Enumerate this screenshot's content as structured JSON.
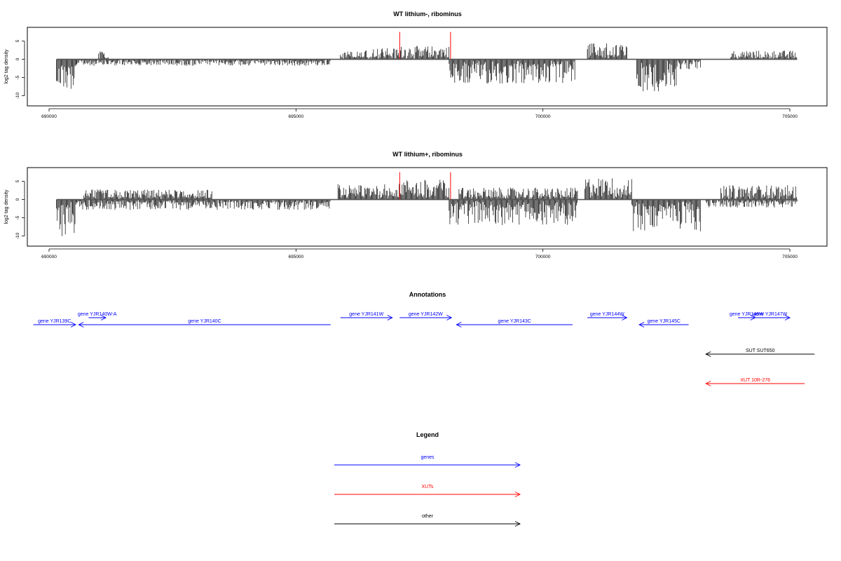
{
  "chart_data": [
    {
      "type": "bar",
      "title": "WT lithium-, ribominus",
      "ylabel": "log2 tag density",
      "xlim": [
        689800,
        705500
      ],
      "ylim": [
        -12,
        8
      ],
      "x_ticks": [
        690000,
        695000,
        700000,
        705000
      ],
      "x_tick_labels": [
        "690000",
        "695000",
        "700000",
        "705000"
      ],
      "y_ticks": [
        -10,
        -5,
        0,
        5
      ],
      "y_tick_labels": [
        "-10",
        "-5",
        "0",
        "5"
      ],
      "grid": false,
      "series": [
        {
          "color": "#000000",
          "segments": [
            {
              "start": 690150,
              "end": 690550,
              "strand": "-",
              "level": 7.5
            },
            {
              "start": 690550,
              "end": 695700,
              "strand": "-",
              "level": 1.6
            },
            {
              "start": 691000,
              "end": 691200,
              "strand": "+",
              "level": 2.0
            },
            {
              "start": 695900,
              "end": 697100,
              "strand": "+",
              "level": 2.8
            },
            {
              "start": 697100,
              "end": 698100,
              "strand": "+",
              "level": 3.3
            },
            {
              "start": 698100,
              "end": 700650,
              "strand": "-",
              "level": 6.2
            },
            {
              "start": 700900,
              "end": 701700,
              "strand": "+",
              "level": 4.0
            },
            {
              "start": 701900,
              "end": 702700,
              "strand": "-",
              "level": 8.0
            },
            {
              "start": 702700,
              "end": 703200,
              "strand": "-",
              "level": 2.5
            },
            {
              "start": 703800,
              "end": 705150,
              "strand": "+",
              "level": 2.2
            }
          ]
        },
        {
          "color": "#ff0000",
          "lines": [
            {
              "x": 697100,
              "y": 7.5
            },
            {
              "x": 698130,
              "y": 7.5
            }
          ]
        }
      ]
    },
    {
      "type": "bar",
      "title": "WT lithium+, ribominus",
      "ylabel": "log2 tag density",
      "xlim": [
        689800,
        705500
      ],
      "ylim": [
        -12,
        8
      ],
      "x_ticks": [
        690000,
        695000,
        700000,
        705000
      ],
      "x_tick_labels": [
        "690000",
        "695000",
        "700000",
        "705000"
      ],
      "y_ticks": [
        -10,
        -5,
        0,
        5
      ],
      "y_tick_labels": [
        "-10",
        "-5",
        "0",
        "5"
      ],
      "grid": false,
      "series": [
        {
          "color": "#000000",
          "segments": [
            {
              "start": 690150,
              "end": 690550,
              "strand": "-",
              "level": 9.5
            },
            {
              "start": 690550,
              "end": 695700,
              "strand": "-",
              "level": 2.6
            },
            {
              "start": 690700,
              "end": 693300,
              "strand": "+",
              "level": 2.5
            },
            {
              "start": 695850,
              "end": 697100,
              "strand": "+",
              "level": 4.0
            },
            {
              "start": 697100,
              "end": 698100,
              "strand": "+",
              "level": 5.0
            },
            {
              "start": 698100,
              "end": 700700,
              "strand": "-",
              "level": 6.5
            },
            {
              "start": 698300,
              "end": 700700,
              "strand": "+",
              "level": 3.0
            },
            {
              "start": 700850,
              "end": 701800,
              "strand": "+",
              "level": 5.5
            },
            {
              "start": 701800,
              "end": 703200,
              "strand": "-",
              "level": 8.0
            },
            {
              "start": 703600,
              "end": 705150,
              "strand": "+",
              "level": 3.6
            },
            {
              "start": 703300,
              "end": 705150,
              "strand": "-",
              "level": 2.0
            }
          ]
        },
        {
          "color": "#ff0000",
          "lines": [
            {
              "x": 697100,
              "y": 7.5
            },
            {
              "x": 698130,
              "y": 7.5
            }
          ]
        }
      ]
    }
  ],
  "annotations": {
    "title": "Annotations",
    "features": [
      {
        "label": "gene YJR139C",
        "start": 689680,
        "end": 690540,
        "strand": "+",
        "color": "#0000ff",
        "row": 0
      },
      {
        "label": "gene YJR140W-A",
        "start": 690800,
        "end": 691150,
        "strand": "+",
        "color": "#0000ff",
        "row": 1
      },
      {
        "label": "gene YJR140C",
        "start": 690600,
        "end": 695700,
        "strand": "-",
        "color": "#0000ff",
        "row": 0
      },
      {
        "label": "gene YJR141W",
        "start": 695900,
        "end": 696950,
        "strand": "+",
        "color": "#0000ff",
        "row": 1
      },
      {
        "label": "gene YJR142W",
        "start": 697100,
        "end": 698150,
        "strand": "+",
        "color": "#0000ff",
        "row": 1
      },
      {
        "label": "gene YJR143C",
        "start": 698250,
        "end": 700600,
        "strand": "-",
        "color": "#0000ff",
        "row": 0
      },
      {
        "label": "gene YJR144W",
        "start": 700900,
        "end": 701700,
        "strand": "+",
        "color": "#0000ff",
        "row": 1
      },
      {
        "label": "gene YJR145C",
        "start": 701950,
        "end": 702950,
        "strand": "-",
        "color": "#0000ff",
        "row": 0
      },
      {
        "label": "gene YJR146W",
        "start": 703950,
        "end": 704300,
        "strand": "+",
        "color": "#0000ff",
        "row": 1
      },
      {
        "label": "gene YJR147W",
        "start": 704200,
        "end": 705000,
        "strand": "+",
        "color": "#0000ff",
        "row": 1
      },
      {
        "label": "SUT SUT650",
        "start": 703300,
        "end": 705500,
        "strand": "-",
        "color": "#000000",
        "row": 2
      },
      {
        "label": "XUT 10R-276",
        "start": 703300,
        "end": 705300,
        "strand": "-",
        "color": "#ff0000",
        "row": 3
      }
    ]
  },
  "legend": {
    "title": "Legend",
    "items": [
      {
        "label": "genes",
        "color": "#0000ff"
      },
      {
        "label": "XUTs",
        "color": "#ff0000"
      },
      {
        "label": "other",
        "color": "#000000"
      }
    ]
  }
}
